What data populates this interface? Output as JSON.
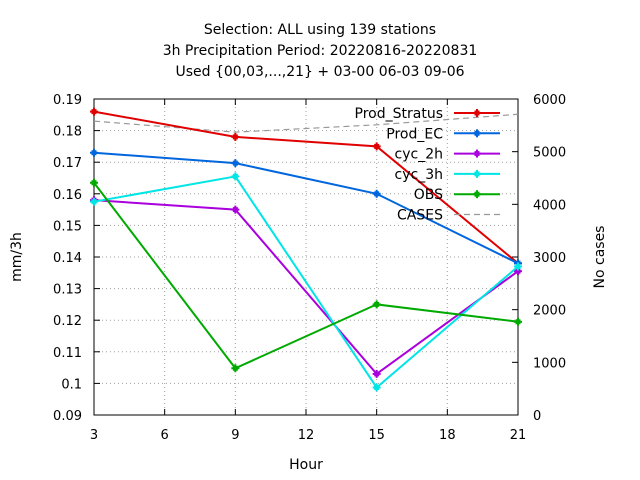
{
  "chart_data": {
    "type": "line",
    "title_lines": [
      "Selection: ALL using   139 stations",
      "3h Precipitation   Period: 20220816-20220831",
      "Used {00,03,...,21} + 03-00 06-03 09-06"
    ],
    "xlabel": "Hour",
    "ylabel": "mm/3h",
    "y2label": "No cases",
    "x": [
      3,
      9,
      15,
      21
    ],
    "xlim": [
      3,
      21
    ],
    "xticks": [
      "3",
      "6",
      "9",
      "12",
      "15",
      "18",
      "21"
    ],
    "ylim": [
      0.09,
      0.19
    ],
    "yticks": [
      "0.09",
      "0.1",
      "0.11",
      "0.12",
      "0.13",
      "0.14",
      "0.15",
      "0.16",
      "0.17",
      "0.18",
      "0.19"
    ],
    "y2lim": [
      0,
      6000
    ],
    "y2ticks": [
      "0",
      "1000",
      "2000",
      "3000",
      "4000",
      "5000",
      "6000"
    ],
    "grid": true,
    "legend_position": "top-right",
    "series": [
      {
        "name": "Prod_Stratus",
        "color": "#e00000",
        "values": [
          0.186,
          0.178,
          0.175,
          0.138
        ]
      },
      {
        "name": "Prod_EC",
        "color": "#0066dd",
        "values": [
          0.173,
          0.1697,
          0.16,
          0.138
        ]
      },
      {
        "name": "cyc_2h",
        "color": "#aa00dd",
        "values": [
          0.158,
          0.155,
          0.103,
          0.1355
        ]
      },
      {
        "name": "cyc_3h",
        "color": "#00e5e5",
        "values": [
          0.1575,
          0.1655,
          0.0987,
          0.137
        ]
      },
      {
        "name": "OBS",
        "color": "#00aa00",
        "values": [
          0.1635,
          0.1048,
          0.125,
          0.1195
        ]
      }
    ],
    "cases": {
      "name": "CASES",
      "color": "#999999",
      "axis": "y2",
      "values": [
        5580,
        5370,
        5510,
        5710
      ]
    }
  }
}
